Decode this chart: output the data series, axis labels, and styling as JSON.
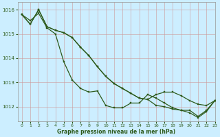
{
  "title": "Graphe pression niveau de la mer (hPa)",
  "bg_color": "#cceeff",
  "grid_color": "#bbbbbb",
  "line_color": "#2d5a1b",
  "xlim": [
    -0.5,
    23
  ],
  "ylim": [
    1011.4,
    1016.3
  ],
  "yticks": [
    1012,
    1013,
    1014,
    1015,
    1016
  ],
  "xticks": [
    0,
    1,
    2,
    3,
    4,
    5,
    6,
    7,
    8,
    9,
    10,
    11,
    12,
    13,
    14,
    15,
    16,
    17,
    18,
    19,
    20,
    21,
    22,
    23
  ],
  "series": [
    [
      1015.8,
      1015.55,
      1015.85,
      1015.25,
      1015.0,
      1013.85,
      1013.1,
      1012.75,
      1012.6,
      1012.65,
      1012.05,
      1011.95,
      1011.95,
      1012.15,
      1012.15,
      1012.5,
      1012.35,
      1012.15,
      1011.95,
      1011.85,
      1011.85,
      1011.6,
      1011.85,
      1012.25
    ],
    [
      1015.8,
      1015.4,
      1016.0,
      1015.3,
      1015.15,
      1015.05,
      1014.85,
      1014.45,
      1014.1,
      1013.65,
      1013.25,
      1012.95,
      1012.75,
      1012.55,
      1012.35,
      1012.3,
      1012.5,
      1012.6,
      1012.6,
      1012.45,
      1012.25,
      1012.1,
      1012.05,
      1012.25
    ],
    [
      1015.8,
      1015.4,
      1016.0,
      1015.3,
      1015.15,
      1015.05,
      1014.85,
      1014.45,
      1014.1,
      1013.65,
      1013.25,
      1012.95,
      1012.75,
      1012.55,
      1012.35,
      1012.3,
      1012.05,
      1012.0,
      1011.9,
      1011.85,
      1011.75,
      1011.55,
      1011.8,
      1012.25
    ]
  ]
}
